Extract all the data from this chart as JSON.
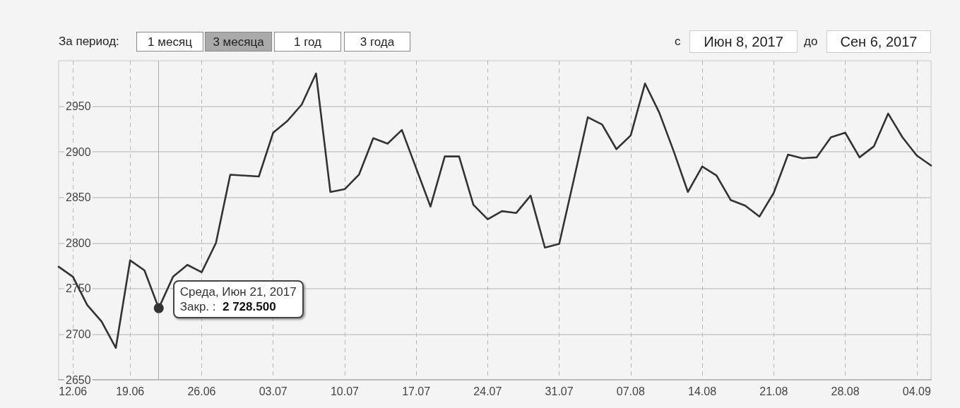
{
  "chart_data": {
    "type": "line",
    "categories": [
      null,
      "12.06",
      null,
      null,
      null,
      "19.06",
      null,
      null,
      null,
      null,
      "26.06",
      null,
      null,
      null,
      null,
      "03.07",
      null,
      null,
      null,
      null,
      "10.07",
      null,
      null,
      null,
      null,
      "17.07",
      null,
      null,
      null,
      null,
      "24.07",
      null,
      null,
      null,
      null,
      "31.07",
      null,
      null,
      null,
      null,
      "07.08",
      null,
      null,
      null,
      null,
      "14.08",
      null,
      null,
      null,
      null,
      "21.08",
      null,
      null,
      null,
      null,
      "28.08",
      null,
      null,
      null,
      null,
      "04.09",
      null
    ],
    "series": [
      {
        "color": "#333333",
        "values": [
          2774,
          2763,
          2732,
          2714,
          2685,
          2781,
          2770,
          2728.5,
          2763,
          2776,
          2768,
          2800,
          2875,
          2874,
          2873,
          2921,
          2934,
          2952,
          2986,
          2856,
          2859,
          2875,
          2915,
          2909,
          2924,
          2882,
          2840,
          2895,
          2895,
          2842,
          2826,
          2835,
          2833,
          2852,
          2795,
          2799,
          2868,
          2938,
          2930,
          2903,
          2918,
          2975,
          2943,
          2901,
          2856,
          2884,
          2874,
          2847,
          2841,
          2829,
          2855,
          2897,
          2893,
          2894,
          2916,
          2921,
          2894,
          2906,
          2942,
          2916,
          2896,
          2885
        ]
      }
    ],
    "ylim": [
      2650,
      3000
    ],
    "yticks": [
      2650,
      2700,
      2750,
      2800,
      2850,
      2900,
      2950
    ],
    "grid": true,
    "marker": "none",
    "line_style": "solid",
    "annotations": [
      "Среда, Июн 21, 2017\nЗакр. : 2 728.500",
      "За период:",
      "1 месяц",
      "3 месяца",
      "1 год",
      "3 года",
      "с",
      "Июн 8, 2017",
      "до",
      "Сен 6, 2017"
    ]
  }
}
